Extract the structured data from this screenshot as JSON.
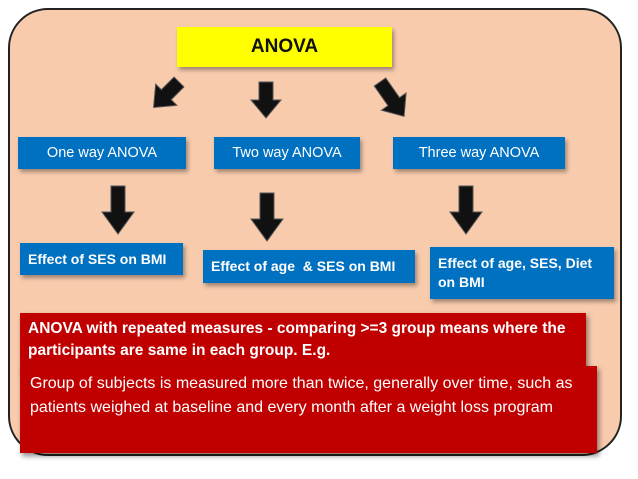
{
  "diagram": {
    "title": "ANOVA",
    "types": [
      "One way ANOVA",
      "Two way ANOVA",
      "Three way ANOVA"
    ],
    "effects": [
      "Effect of SES on BMI",
      "Effect of age  & SES on BMI",
      "Effect of age, SES, Diet on BMI"
    ],
    "repeated_measures": {
      "heading": "ANOVA with repeated measures - comparing >=3 group means where the participants are same in each group. E.g.",
      "example": "Group of subjects is measured more than twice, generally over time, such as patients weighed at baseline and every month after a weight loss program"
    }
  },
  "colors": {
    "panel": "#f8cbad",
    "title_box": "#ffff00",
    "type_box": "#0070c0",
    "note_box": "#c00000",
    "arrow": "#111111"
  }
}
